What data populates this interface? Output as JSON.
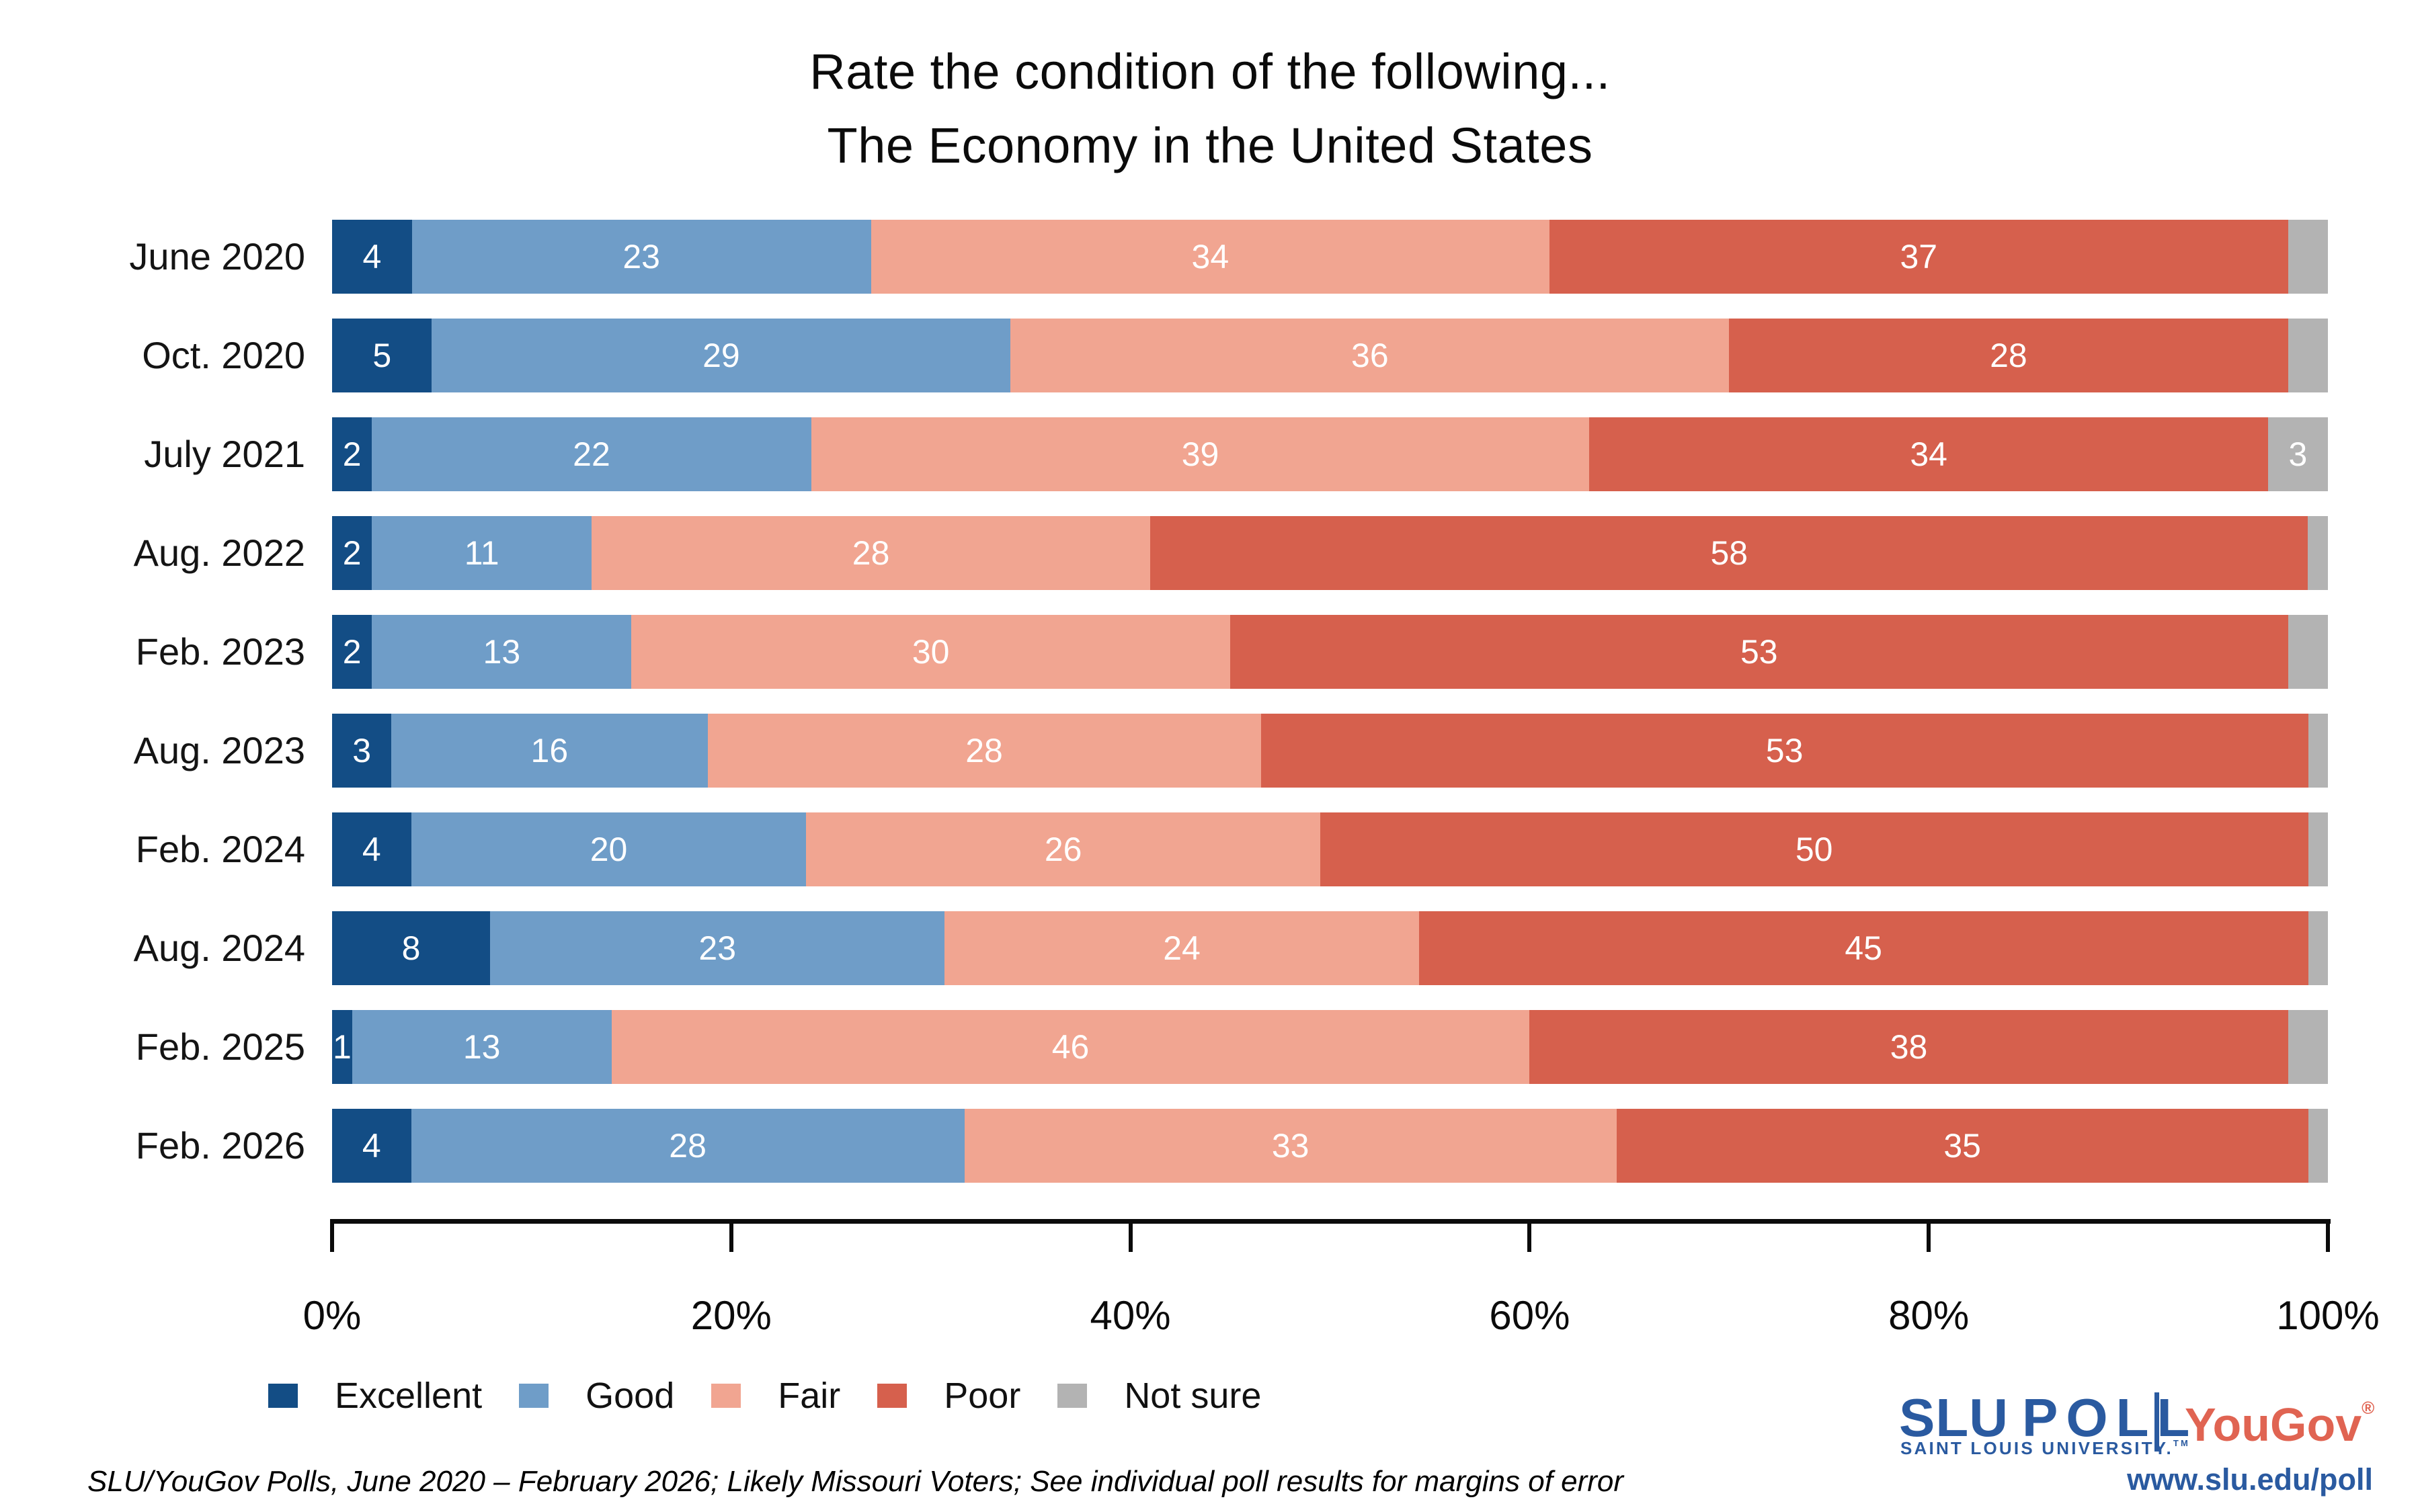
{
  "title": {
    "line1": "Rate the condition of the following...",
    "line2": "The Economy in the United States"
  },
  "chart_data": {
    "type": "bar",
    "orientation": "horizontal",
    "stacked": true,
    "title": "Rate the condition of the following... The Economy in the United States",
    "categories": [
      "June 2020",
      "Oct. 2020",
      "July 2021",
      "Aug. 2022",
      "Feb. 2023",
      "Aug. 2023",
      "Feb. 2024",
      "Aug. 2024",
      "Feb. 2025",
      "Feb. 2026"
    ],
    "series": [
      {
        "name": "Excellent",
        "color": "#134d85",
        "values": [
          4,
          5,
          2,
          2,
          2,
          3,
          4,
          8,
          1,
          4
        ]
      },
      {
        "name": "Good",
        "color": "#6f9dc8",
        "values": [
          23,
          29,
          22,
          11,
          13,
          16,
          20,
          23,
          13,
          28
        ]
      },
      {
        "name": "Fair",
        "color": "#f1a591",
        "values": [
          34,
          36,
          39,
          28,
          30,
          28,
          26,
          24,
          46,
          33
        ]
      },
      {
        "name": "Poor",
        "color": "#d6604d",
        "values": [
          37,
          28,
          34,
          58,
          53,
          53,
          50,
          45,
          38,
          35
        ]
      },
      {
        "name": "Not sure",
        "color": "#b3b3b3",
        "values": [
          2,
          2,
          3,
          1,
          2,
          1,
          1,
          1,
          2,
          1
        ]
      }
    ],
    "value_labels_inside": true,
    "not_sure_label_min": 3,
    "x_ticks": [
      "0%",
      "20%",
      "40%",
      "60%",
      "80%",
      "100%"
    ],
    "xlim": [
      0,
      100
    ],
    "grid": false,
    "legend_position": "bottom-left"
  },
  "footer": {
    "source_note": "SLU/YouGov Polls, June 2020 – February 2026; Likely Missouri Voters; See individual poll results for margins of error"
  },
  "branding": {
    "slu_word": "SLU",
    "poll_word": "POLL",
    "slu_tagline": "SAINT LOUIS UNIVERSITY.",
    "slu_tm": "TM",
    "yougov_word": "YouGov",
    "yougov_reg": "®",
    "url": "www.slu.edu/poll",
    "slu_blue": "#2a5aa0",
    "yougov_coral": "#e06452"
  }
}
